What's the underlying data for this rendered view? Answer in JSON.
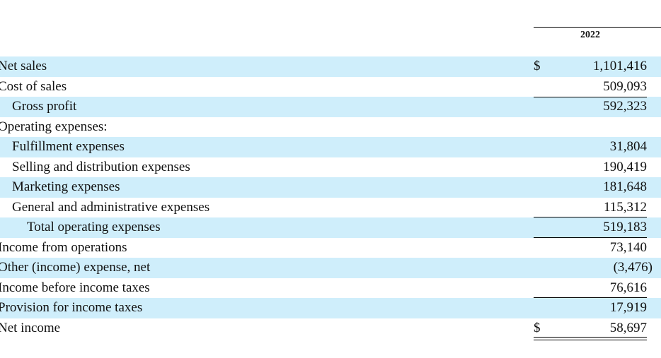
{
  "header": {
    "year": "2022"
  },
  "rows": [
    {
      "label": "Net sales",
      "currency": "$",
      "value": "1,101,416"
    },
    {
      "label": "Cost of sales",
      "currency": "",
      "value": "509,093"
    },
    {
      "label": "Gross profit",
      "currency": "",
      "value": "592,323"
    },
    {
      "label": "Operating expenses:",
      "currency": "",
      "value": ""
    },
    {
      "label": "Fulfillment expenses",
      "currency": "",
      "value": "31,804"
    },
    {
      "label": "Selling and distribution expenses",
      "currency": "",
      "value": "190,419"
    },
    {
      "label": "Marketing expenses",
      "currency": "",
      "value": "181,648"
    },
    {
      "label": "General and administrative expenses",
      "currency": "",
      "value": "115,312"
    },
    {
      "label": "Total operating expenses",
      "currency": "",
      "value": "519,183"
    },
    {
      "label": "Income from operations",
      "currency": "",
      "value": "73,140"
    },
    {
      "label": "Other (income) expense, net",
      "currency": "",
      "value": "(3,476)"
    },
    {
      "label": "Income before income taxes",
      "currency": "",
      "value": "76,616"
    },
    {
      "label": "Provision for income taxes",
      "currency": "",
      "value": "17,919"
    },
    {
      "label": "Net income",
      "currency": "$",
      "value": "58,697"
    }
  ],
  "colors": {
    "row_shade": "#cfeefb",
    "text": "#111111"
  }
}
